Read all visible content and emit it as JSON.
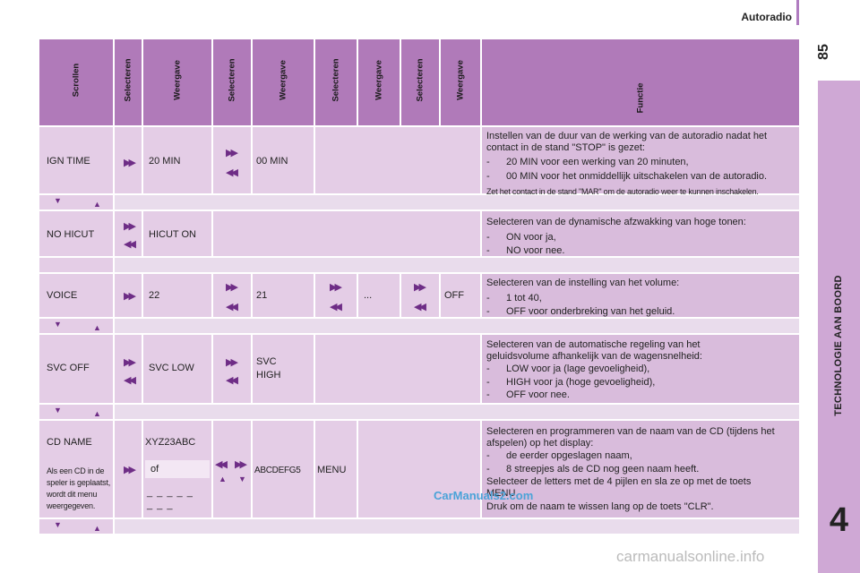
{
  "page": {
    "section_title": "Autoradio",
    "page_number": "85",
    "chapter_label": "TECHNOLOGIE AAN BOORD",
    "chapter_number": "4"
  },
  "headers": {
    "scrollen": "Scrollen",
    "selecteren": "Selecteren",
    "weergave": "Weergave",
    "functie": "Functie"
  },
  "rows": {
    "ign": {
      "name": "IGN TIME",
      "v1": "20 MIN",
      "v2": "00 MIN",
      "desc_intro": "Instellen van de duur van de werking van de autoradio nadat het contact in de stand \"STOP\" is gezet:",
      "items": [
        "20 MIN voor een werking van 20 minuten,",
        "00 MIN voor het onmiddellijk uitschakelen van de autoradio."
      ],
      "note": "Zet het contact in de stand \"MAR\" om de autoradio weer te kunnen inschakelen."
    },
    "hicut": {
      "name": "NO HICUT",
      "v1": "HICUT ON",
      "desc_intro": "Selecteren van de dynamische afzwakking van hoge tonen:",
      "items": [
        "ON voor ja,",
        "NO voor nee."
      ]
    },
    "voice": {
      "name": "VOICE",
      "v1": "22",
      "v2": "21",
      "v3": "...",
      "v4": "OFF",
      "desc_intro": "Selecteren van de instelling van het volume:",
      "items": [
        "1 tot 40,",
        "OFF voor onderbreking van het geluid."
      ]
    },
    "svc": {
      "name": "SVC OFF",
      "v1": "SVC LOW",
      "v2a": "SVC",
      "v2b": "HIGH",
      "desc_intro": "Selecteren van de automatische regeling van het geluidsvolume afhankelijk van de wagensnelheid:",
      "items": [
        "LOW voor ja (lage gevoeligheid),",
        "HIGH voor ja (hoge gevoeligheid),",
        "OFF voor nee."
      ]
    },
    "cd": {
      "name": "CD NAME",
      "note_lines": [
        "Als een CD in de",
        "speler is geplaatst,",
        "wordt dit menu",
        "weergegeven."
      ],
      "v1": "XYZ23ABC",
      "or": "of",
      "dashes1": "_ _ _ _ _",
      "dashes2": "_ _ _",
      "v2": "ABCDEFG5",
      "v3": "MENU",
      "desc_intro": "Selecteren en programmeren van de naam van de CD (tijdens het afspelen) op het display:",
      "items": [
        "de eerder opgeslagen naam,",
        "8 streepjes als de CD nog geen naam heeft."
      ],
      "extra1": "Selecteer de letters met de 4 pijlen en sla ze op met de toets MENU.",
      "extra2": "Druk om de naam te wissen lang op de toets \"CLR\"."
    }
  },
  "dash": "-",
  "watermarks": [
    "CarManuals2.com",
    "carmanualsonline.info"
  ],
  "colors": {
    "header": "#b07ab9",
    "cell": "#e4cde6",
    "sidebar": "#cfa8d5",
    "accent": "#6e2d86"
  }
}
